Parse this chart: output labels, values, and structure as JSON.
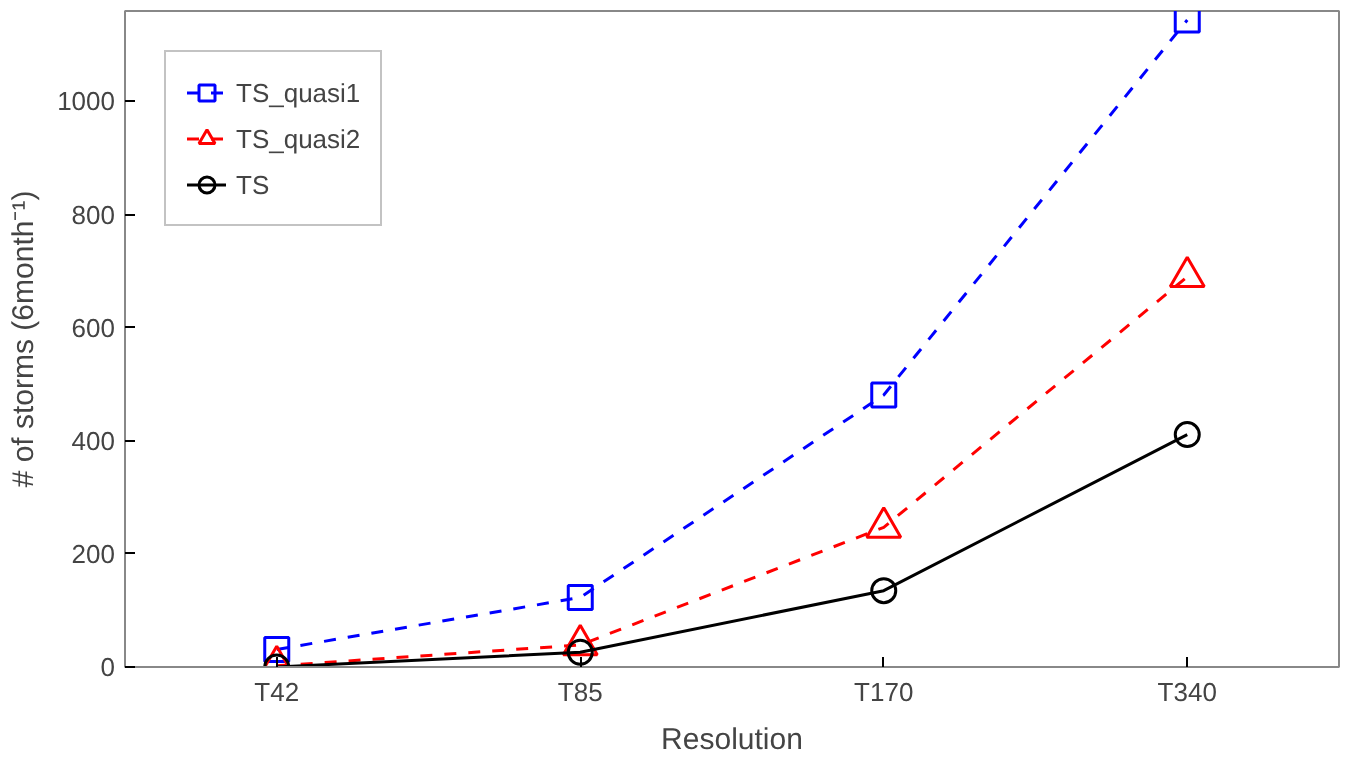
{
  "chart_data": {
    "type": "line",
    "xlabel": "Resolution",
    "ylabel": "# of storms (6month⁻¹)",
    "categories": [
      "T42",
      "T85",
      "T170",
      "T340"
    ],
    "ylim": [
      0,
      1160
    ],
    "yticks": [
      0,
      200,
      400,
      600,
      800,
      1000
    ],
    "grid": false,
    "legend": "top left",
    "series": [
      {
        "name": "TS_quasi1",
        "color": "#0000ff",
        "marker": "square",
        "line_style": "dashed",
        "values": [
          31,
          123,
          481,
          1144
        ]
      },
      {
        "name": "TS_quasi2",
        "color": "#ff0000",
        "marker": "triangle",
        "line_style": "dashed",
        "values": [
          2,
          39,
          247,
          690
        ]
      },
      {
        "name": "TS",
        "color": "#000000",
        "marker": "circle",
        "line_style": "solid",
        "values": [
          0,
          26,
          135,
          411
        ]
      }
    ]
  }
}
